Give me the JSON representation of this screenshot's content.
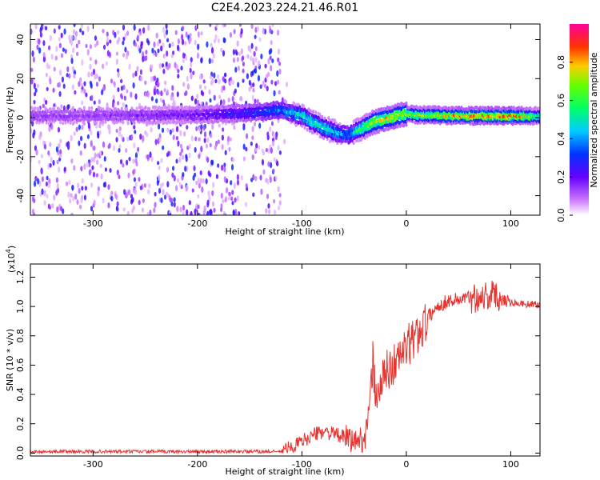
{
  "title": "C2E4.2023.224.21.46.R01",
  "colors": {
    "snr_line": "#e8332f",
    "axis": "#000000"
  },
  "chart_data": [
    {
      "type": "heatmap",
      "title": "C2E4.2023.224.21.46.R01",
      "xlabel": "Height of straight line (km)",
      "ylabel": "Frequency (Hz)",
      "xlim": [
        -360,
        128
      ],
      "ylim": [
        -50,
        48
      ],
      "xticks": [
        -300,
        -200,
        -100,
        0,
        100
      ],
      "xtick_labels": [
        "-300",
        "-200",
        "-100",
        "0",
        "100"
      ],
      "yticks": [
        -40,
        -20,
        0,
        20,
        40
      ],
      "ytick_labels": [
        "-40",
        "-20",
        "0",
        "20",
        "40"
      ],
      "ridge": {
        "x": [
          -360,
          -300,
          -200,
          -150,
          -120,
          -100,
          -80,
          -65,
          -55,
          -45,
          -30,
          -15,
          0,
          10,
          50,
          100,
          128
        ],
        "frequency": [
          1,
          1,
          1.5,
          2.5,
          4,
          1,
          -5,
          -8,
          -9,
          -6,
          -2,
          0,
          2,
          1.5,
          1,
          1,
          1
        ],
        "amplitude": [
          0.15,
          0.15,
          0.2,
          0.3,
          0.4,
          0.5,
          0.55,
          0.45,
          0.4,
          0.6,
          0.75,
          0.8,
          0.75,
          0.7,
          0.85,
          0.9,
          0.6
        ]
      },
      "noise_region_x": [
        -360,
        -120
      ],
      "colorbar": {
        "label": "Normalized spectral amplitude",
        "range": [
          0,
          1
        ],
        "ticks": [
          0.0,
          0.2,
          0.4,
          0.6,
          0.8
        ],
        "tick_labels": [
          "0.0",
          "0.2",
          "0.4",
          "0.6",
          "0.8"
        ]
      }
    },
    {
      "type": "line",
      "xlabel": "Height of straight line (km)",
      "ylabel": "SNR (10 * v/v)",
      "scale_label_base": "(x10",
      "scale_label_exp": "4",
      "scale_label_end": ")",
      "xlim": [
        -360,
        128
      ],
      "ylim": [
        -0.02,
        1.29
      ],
      "xticks": [
        -300,
        -200,
        -100,
        0,
        100
      ],
      "xtick_labels": [
        "-300",
        "-200",
        "-100",
        "0",
        "100"
      ],
      "yticks": [
        0.0,
        0.2,
        0.4,
        0.6,
        0.8,
        1.0,
        1.2
      ],
      "ytick_labels": [
        "0.0",
        "0.2",
        "0.4",
        "0.6",
        "0.8",
        "1.0",
        "1.2"
      ],
      "series": [
        {
          "name": "SNR",
          "x": [
            -360,
            -300,
            -250,
            -200,
            -150,
            -120,
            -110,
            -100,
            -90,
            -80,
            -70,
            -60,
            -50,
            -40,
            -35,
            -32,
            -30,
            -25,
            -20,
            -10,
            0,
            10,
            20,
            30,
            40,
            50,
            60,
            70,
            80,
            90,
            100,
            110,
            128
          ],
          "y": [
            0.01,
            0.01,
            0.01,
            0.01,
            0.01,
            0.01,
            0.04,
            0.08,
            0.12,
            0.15,
            0.13,
            0.11,
            0.08,
            0.1,
            0.3,
            0.65,
            0.4,
            0.45,
            0.55,
            0.62,
            0.72,
            0.8,
            0.92,
            1.0,
            1.04,
            1.05,
            1.06,
            1.07,
            1.08,
            1.06,
            1.03,
            1.02,
            1.01
          ]
        }
      ]
    }
  ]
}
